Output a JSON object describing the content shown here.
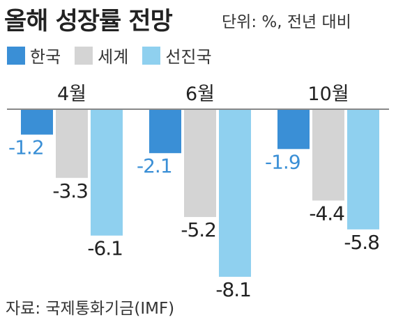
{
  "header": {
    "title": "올해 성장률 전망",
    "unit": "단위: %, 전년 대비"
  },
  "source": "자료: 국제통화기금(IMF)",
  "colors": {
    "korea": "#3a8fd6",
    "world": "#d4d4d4",
    "advanced": "#8fd0ef",
    "axis": "#888888",
    "label_korea": "#3a8fd6",
    "label_default": "#222222"
  },
  "chart_data": {
    "type": "bar",
    "title": "올해 성장률 전망",
    "unit": "단위: %, 전년 대비",
    "categories": [
      "4월",
      "6월",
      "10월"
    ],
    "series": [
      {
        "name": "한국",
        "values": [
          -1.2,
          -2.1,
          -1.9
        ]
      },
      {
        "name": "세계",
        "values": [
          -3.3,
          -5.2,
          -4.4
        ]
      },
      {
        "name": "선진국",
        "values": [
          -6.1,
          -8.1,
          -5.8
        ]
      }
    ],
    "value_labels": [
      [
        "-1.2",
        "-3.3",
        "-6.1"
      ],
      [
        "-2.1",
        "-5.2",
        "-8.1"
      ],
      [
        "-1.9",
        "-4.4",
        "-5.8"
      ]
    ],
    "ylim": [
      -8.1,
      0
    ],
    "grid": false,
    "legend_position": "top-left"
  }
}
